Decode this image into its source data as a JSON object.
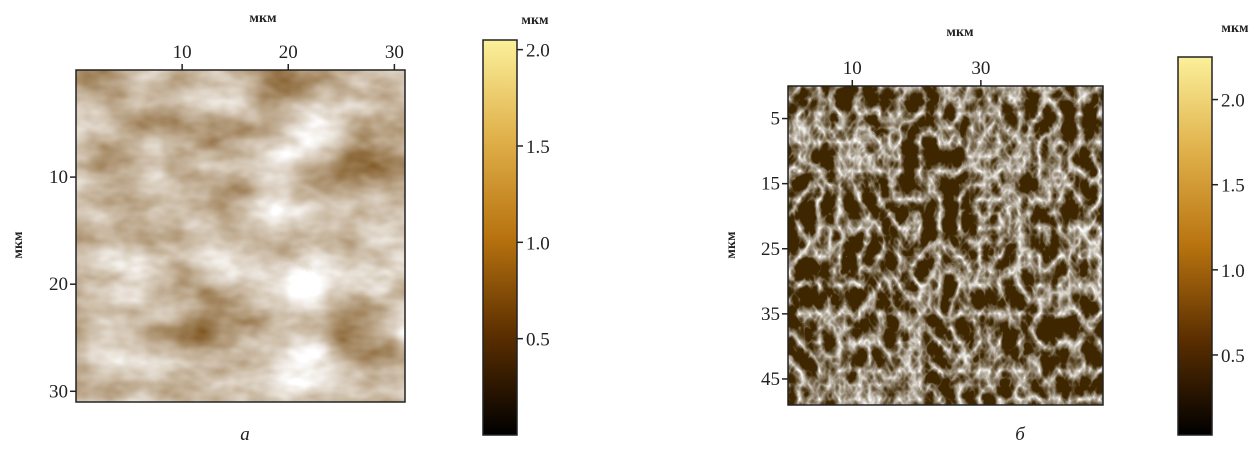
{
  "chart_data": [
    {
      "type": "heatmap",
      "caption": "а",
      "x_label": "мкм",
      "y_label": "мкм",
      "colorbar_label": "мкм",
      "xlim": [
        0,
        31
      ],
      "xticks": [
        10,
        20,
        30
      ],
      "ylim": [
        0,
        31
      ],
      "yticks": [
        10,
        20,
        30
      ],
      "clim": [
        0,
        2.05
      ],
      "cticks": [
        {
          "value": 2.0,
          "label": "2.0"
        },
        1.5,
        {
          "value": 1.0,
          "label": "1.0"
        },
        0.5
      ],
      "colormap": [
        "#000000",
        "#5a2e00",
        "#b8730f",
        "#e0b04a",
        "#fbf09a"
      ]
    },
    {
      "type": "heatmap",
      "caption": "б",
      "x_label": "мкм",
      "y_label": "мкм",
      "colorbar_label": "мкм",
      "xlim": [
        0,
        49
      ],
      "xticks": [
        10,
        30
      ],
      "ylim": [
        0,
        49
      ],
      "yticks": [
        5,
        15,
        25,
        35,
        45
      ],
      "clim": [
        0.03,
        2.25
      ],
      "cticks": [
        {
          "value": 2.0,
          "label": "2.0"
        },
        1.5,
        {
          "value": 1.0,
          "label": "1.0"
        },
        0.5
      ],
      "colormap": [
        "#000000",
        "#5a2e00",
        "#b8730f",
        "#e0b04a",
        "#fbf09a"
      ]
    }
  ]
}
